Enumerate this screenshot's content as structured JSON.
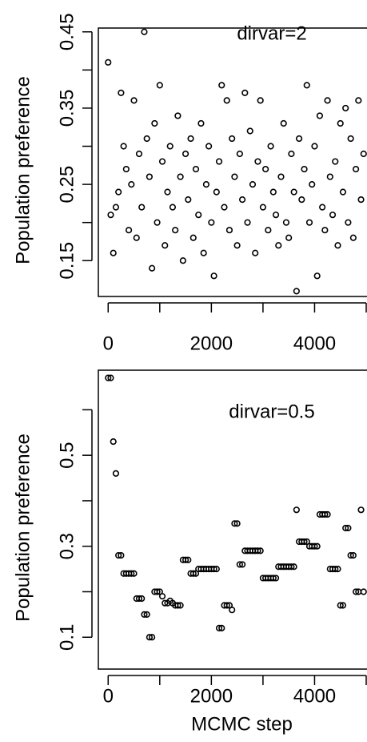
{
  "chart_data": [
    {
      "type": "scatter",
      "annotation": "dirvar=2",
      "ylabel": "Population preference",
      "color": "#000000",
      "xlim": [
        -190,
        5000
      ],
      "xticks": [
        0,
        2000,
        4000
      ],
      "xminorticks": [
        1000,
        3000,
        5000
      ],
      "ylim": [
        0.103,
        0.455
      ],
      "yticks": [
        0.15,
        0.25,
        0.35,
        0.45
      ],
      "yminorticks": [
        0.2,
        0.3,
        0.4
      ],
      "x": [
        0,
        50,
        100,
        150,
        200,
        250,
        300,
        350,
        400,
        450,
        500,
        550,
        600,
        650,
        700,
        750,
        800,
        850,
        900,
        950,
        1000,
        1050,
        1100,
        1150,
        1200,
        1250,
        1300,
        1350,
        1400,
        1450,
        1500,
        1550,
        1600,
        1650,
        1700,
        1750,
        1800,
        1850,
        1900,
        1950,
        2000,
        2050,
        2100,
        2150,
        2200,
        2250,
        2300,
        2350,
        2400,
        2450,
        2500,
        2550,
        2600,
        2650,
        2700,
        2750,
        2800,
        2850,
        2900,
        2950,
        3000,
        3050,
        3100,
        3150,
        3200,
        3250,
        3300,
        3350,
        3400,
        3450,
        3500,
        3550,
        3600,
        3650,
        3700,
        3750,
        3800,
        3850,
        3900,
        3950,
        4000,
        4050,
        4100,
        4150,
        4200,
        4250,
        4300,
        4350,
        4400,
        4450,
        4500,
        4550,
        4600,
        4650,
        4700,
        4750,
        4800,
        4850,
        4900,
        4950
      ],
      "values": [
        0.41,
        0.21,
        0.16,
        0.22,
        0.24,
        0.37,
        0.3,
        0.27,
        0.19,
        0.25,
        0.36,
        0.18,
        0.29,
        0.22,
        0.45,
        0.31,
        0.26,
        0.14,
        0.33,
        0.2,
        0.38,
        0.28,
        0.17,
        0.24,
        0.3,
        0.22,
        0.19,
        0.34,
        0.26,
        0.15,
        0.29,
        0.23,
        0.31,
        0.18,
        0.27,
        0.21,
        0.33,
        0.16,
        0.25,
        0.3,
        0.2,
        0.13,
        0.24,
        0.28,
        0.38,
        0.22,
        0.36,
        0.19,
        0.31,
        0.26,
        0.17,
        0.29,
        0.23,
        0.37,
        0.2,
        0.32,
        0.25,
        0.16,
        0.28,
        0.36,
        0.22,
        0.27,
        0.19,
        0.3,
        0.24,
        0.21,
        0.17,
        0.26,
        0.33,
        0.2,
        0.18,
        0.29,
        0.24,
        0.11,
        0.31,
        0.23,
        0.27,
        0.38,
        0.2,
        0.25,
        0.3,
        0.13,
        0.34,
        0.22,
        0.19,
        0.36,
        0.26,
        0.21,
        0.28,
        0.17,
        0.33,
        0.24,
        0.35,
        0.2,
        0.31,
        0.18,
        0.27,
        0.36,
        0.23,
        0.29
      ]
    },
    {
      "type": "scatter",
      "annotation": "dirvar=0.5",
      "ylabel": "Population preference",
      "xlabel": "MCMC step",
      "color": "#000000",
      "xlim": [
        -190,
        5000
      ],
      "xticks": [
        0,
        2000,
        4000
      ],
      "xminorticks": [
        1000,
        3000,
        5000
      ],
      "ylim": [
        0.03,
        0.687
      ],
      "yticks": [
        0.1,
        0.3,
        0.5
      ],
      "yminorticks": [
        0.2,
        0.4,
        0.6
      ],
      "x": [
        0,
        50,
        100,
        150,
        200,
        250,
        300,
        350,
        400,
        450,
        500,
        550,
        600,
        650,
        700,
        750,
        800,
        850,
        900,
        950,
        1000,
        1050,
        1100,
        1150,
        1200,
        1250,
        1300,
        1350,
        1400,
        1450,
        1500,
        1550,
        1600,
        1650,
        1700,
        1750,
        1800,
        1850,
        1900,
        1950,
        2000,
        2050,
        2100,
        2150,
        2200,
        2250,
        2300,
        2350,
        2400,
        2450,
        2500,
        2550,
        2600,
        2650,
        2700,
        2750,
        2800,
        2850,
        2900,
        2950,
        3000,
        3050,
        3100,
        3150,
        3200,
        3250,
        3300,
        3350,
        3400,
        3450,
        3500,
        3550,
        3600,
        3650,
        3700,
        3750,
        3800,
        3850,
        3900,
        3950,
        4000,
        4050,
        4100,
        4150,
        4200,
        4250,
        4300,
        4350,
        4400,
        4450,
        4500,
        4550,
        4600,
        4650,
        4700,
        4750,
        4800,
        4850,
        4900,
        4950
      ],
      "values": [
        0.67,
        0.67,
        0.53,
        0.46,
        0.28,
        0.28,
        0.24,
        0.24,
        0.24,
        0.24,
        0.24,
        0.185,
        0.185,
        0.185,
        0.15,
        0.15,
        0.1,
        0.1,
        0.2,
        0.2,
        0.2,
        0.19,
        0.175,
        0.175,
        0.18,
        0.175,
        0.17,
        0.17,
        0.17,
        0.27,
        0.27,
        0.27,
        0.24,
        0.24,
        0.24,
        0.25,
        0.25,
        0.25,
        0.25,
        0.25,
        0.25,
        0.25,
        0.25,
        0.12,
        0.12,
        0.17,
        0.17,
        0.17,
        0.16,
        0.35,
        0.35,
        0.26,
        0.26,
        0.29,
        0.29,
        0.29,
        0.29,
        0.29,
        0.29,
        0.29,
        0.23,
        0.23,
        0.23,
        0.23,
        0.23,
        0.23,
        0.255,
        0.255,
        0.255,
        0.255,
        0.255,
        0.255,
        0.255,
        0.38,
        0.31,
        0.31,
        0.31,
        0.31,
        0.3,
        0.3,
        0.3,
        0.3,
        0.37,
        0.37,
        0.37,
        0.37,
        0.25,
        0.25,
        0.25,
        0.25,
        0.17,
        0.17,
        0.34,
        0.34,
        0.28,
        0.28,
        0.2,
        0.2,
        0.38,
        0.2
      ]
    }
  ]
}
